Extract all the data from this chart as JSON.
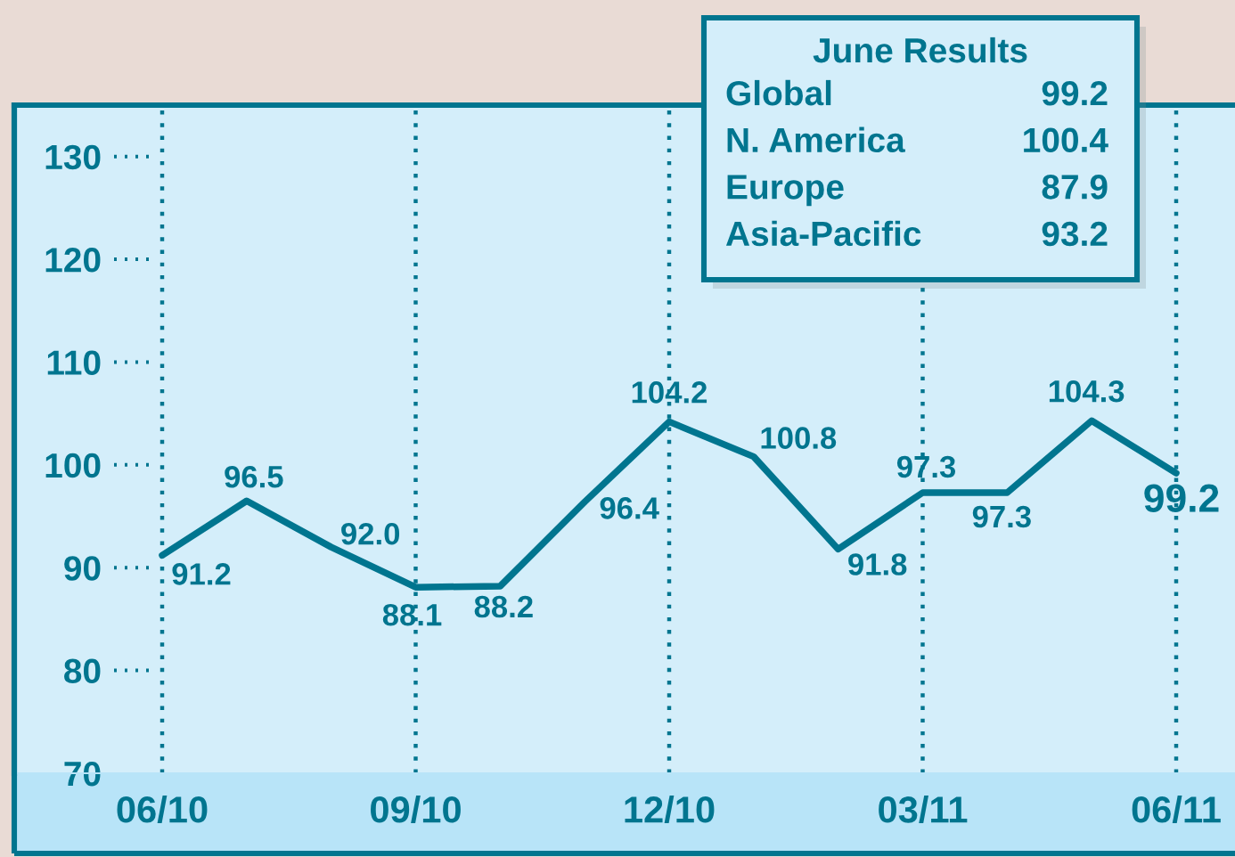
{
  "chart_data": {
    "type": "line",
    "categories": [
      "06/10",
      null,
      null,
      "09/10",
      null,
      null,
      "12/10",
      null,
      null,
      "03/11",
      null,
      null,
      "06/11"
    ],
    "series": [
      {
        "color": "#00758f",
        "values": [
          91.2,
          96.5,
          92.0,
          88.1,
          88.2,
          96.4,
          104.2,
          100.8,
          91.8,
          97.3,
          97.3,
          104.3,
          99.2
        ],
        "value_labels": [
          "91.2",
          "96.5",
          "92.0",
          "88.1",
          "88.2",
          "96.4",
          "104.2",
          "100.8",
          "91.8",
          "97.3",
          "97.3",
          "104.3",
          "99.2"
        ]
      }
    ],
    "ylim": [
      70,
      135
    ],
    "yticks": [
      70,
      80,
      90,
      100,
      110,
      120,
      130
    ],
    "grid": "x",
    "annotations": [
      "June Results",
      "Global",
      "99.2",
      "N. America",
      "100.4",
      "Europe",
      "87.9",
      "Asia-Pacific",
      "93.2"
    ]
  }
}
